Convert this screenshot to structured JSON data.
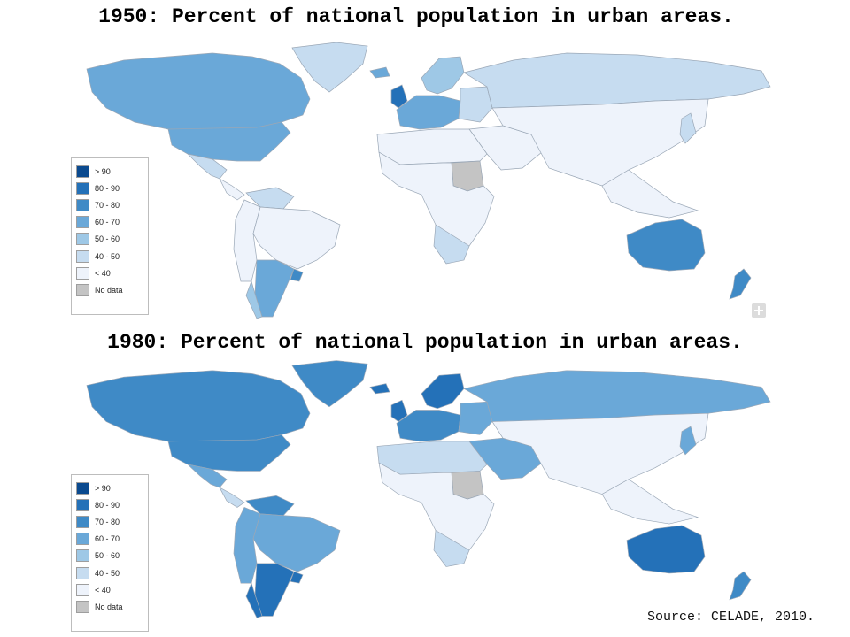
{
  "maps": [
    {
      "id": "1950",
      "title": "1950: Percent of national population in urban areas."
    },
    {
      "id": "1980",
      "title": "1980: Percent of national population in urban areas."
    }
  ],
  "legend": {
    "items": [
      {
        "label": "> 90",
        "color": "#0b4a8f"
      },
      {
        "label": "80 - 90",
        "color": "#2471b8"
      },
      {
        "label": "70 - 80",
        "color": "#3f8ac6"
      },
      {
        "label": "60 - 70",
        "color": "#6aa8d8"
      },
      {
        "label": "50 - 60",
        "color": "#9ec8e6"
      },
      {
        "label": "40 - 50",
        "color": "#c6dcf0"
      },
      {
        "label": "< 40",
        "color": "#eef3fb"
      },
      {
        "label": "No data",
        "color": "#c4c4c4"
      }
    ]
  },
  "regions_1950": {
    "north_america": "#6aa8d8",
    "usa": "#6aa8d8",
    "greenland": "#c6dcf0",
    "mexico": "#c6dcf0",
    "central_america": "#eef3fb",
    "venezuela": "#c6dcf0",
    "south_america": "#eef3fb",
    "brazil": "#eef3fb",
    "chile": "#9ec8e6",
    "argentina": "#6aa8d8",
    "uruguay": "#3f8ac6",
    "uk": "#2471b8",
    "western_europe": "#6aa8d8",
    "scandinavia": "#9ec8e6",
    "eastern_europe": "#c6dcf0",
    "russia": "#c6dcf0",
    "iceland": "#6aa8d8",
    "north_africa": "#eef3fb",
    "africa": "#eef3fb",
    "sudan": "#c4c4c4",
    "south_africa": "#c6dcf0",
    "middle_east": "#eef3fb",
    "asia": "#eef3fb",
    "japan": "#c6dcf0",
    "se_asia": "#eef3fb",
    "australia": "#3f8ac6",
    "new_zealand": "#3f8ac6"
  },
  "regions_1980": {
    "north_america": "#3f8ac6",
    "usa": "#3f8ac6",
    "greenland": "#3f8ac6",
    "mexico": "#6aa8d8",
    "central_america": "#c6dcf0",
    "venezuela": "#3f8ac6",
    "south_america": "#6aa8d8",
    "brazil": "#6aa8d8",
    "chile": "#2471b8",
    "argentina": "#2471b8",
    "uruguay": "#2471b8",
    "uk": "#2471b8",
    "western_europe": "#3f8ac6",
    "scandinavia": "#2471b8",
    "eastern_europe": "#6aa8d8",
    "russia": "#6aa8d8",
    "iceland": "#2471b8",
    "north_africa": "#c6dcf0",
    "africa": "#eef3fb",
    "sudan": "#c4c4c4",
    "south_africa": "#c6dcf0",
    "middle_east": "#6aa8d8",
    "asia": "#eef3fb",
    "japan": "#6aa8d8",
    "se_asia": "#eef3fb",
    "australia": "#2471b8",
    "new_zealand": "#3f8ac6"
  },
  "source": "Source: CELADE, 2010."
}
